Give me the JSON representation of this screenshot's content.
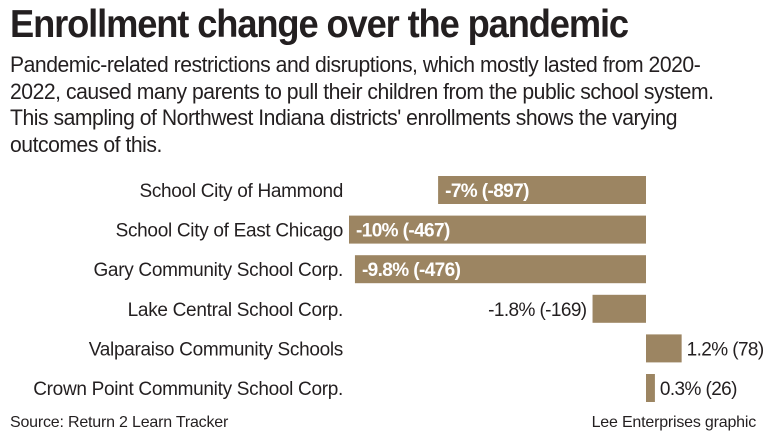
{
  "title": "Enrollment change over the pandemic",
  "subtitle": "Pandemic-related restrictions and disruptions, which mostly lasted from 2020-2022, caused many parents to pull their children from the public school system. This sampling of Northwest Indiana districts' enrollments shows the varying outcomes of this.",
  "source": "Source: Return 2 Learn Tracker",
  "credit": "Lee Enterprises graphic",
  "chart_data": {
    "type": "bar",
    "orientation": "horizontal",
    "categories": [
      "School City of Hammond",
      "School City of East Chicago",
      "Gary Community School Corp.",
      "Lake Central School Corp.",
      "Valparaiso Community Schools",
      "Crown Point Community School Corp."
    ],
    "values": [
      -7,
      -10,
      -9.8,
      -1.8,
      1.2,
      0.3
    ],
    "counts": [
      -897,
      -467,
      -476,
      -169,
      78,
      26
    ],
    "data_labels": [
      "-7% (-897)",
      "-10% (-467)",
      "-9.8% (-476)",
      "-1.8% (-169)",
      "1.2% (78)",
      "0.3% (26)"
    ],
    "unit": "%",
    "xlim": [
      -10,
      4
    ],
    "grid": false,
    "bar_color": "#9c8562"
  }
}
